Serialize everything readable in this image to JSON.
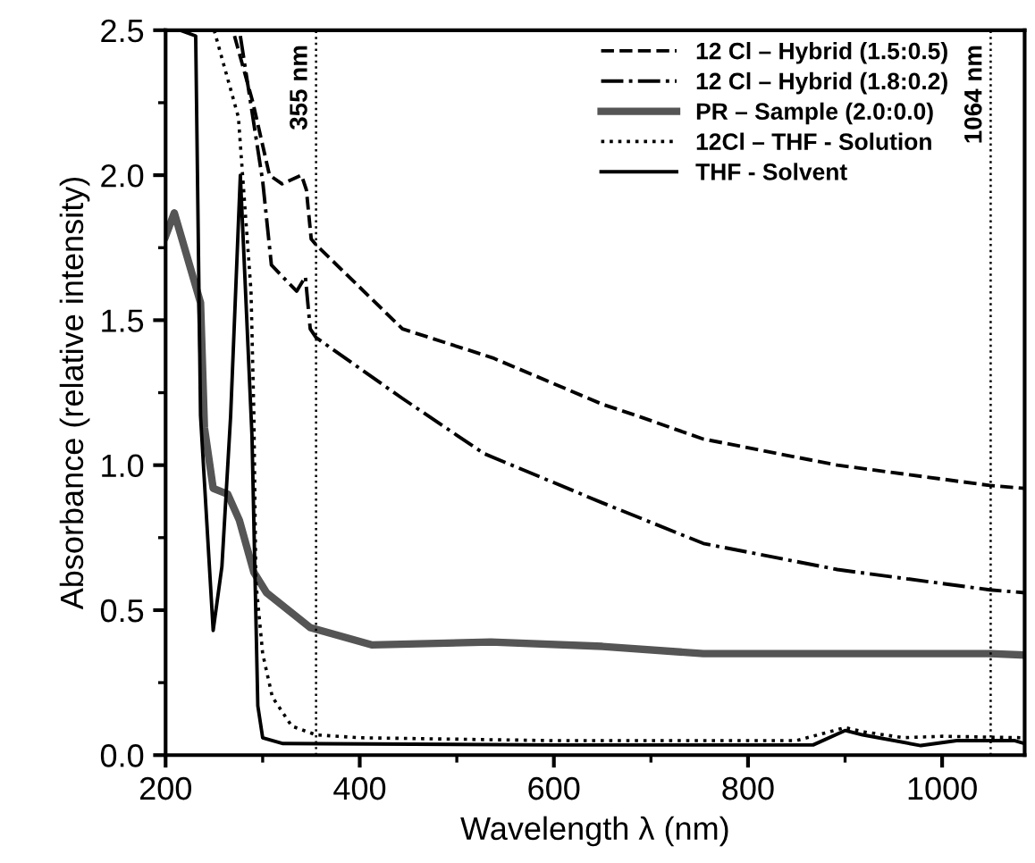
{
  "chart_data": {
    "type": "line",
    "xlabel": "Wavelength λ (nm)",
    "ylabel": "Absorbance (relative intensity)",
    "xlim": [
      200,
      1085
    ],
    "ylim": [
      0,
      2.5
    ],
    "xticks": [
      200,
      400,
      600,
      800,
      1000
    ],
    "yticks": [
      {
        "value": 0,
        "label": "0.0"
      },
      {
        "value": 0.5,
        "label": "0.5"
      },
      {
        "value": 1,
        "label": "1.0"
      },
      {
        "value": 1.5,
        "label": "1.5"
      },
      {
        "value": 2,
        "label": "2.0"
      },
      {
        "value": 2.5,
        "label": "2.5"
      }
    ],
    "legend": "top right",
    "grid": false,
    "ref_lines": [
      {
        "axis": "x",
        "value": 355,
        "label": "355 nm",
        "line_style": "dotted",
        "color": "#000000"
      },
      {
        "axis": "x",
        "value": 1050,
        "label": "1064 nm",
        "line_style": "dotted",
        "color": "#000000"
      }
    ],
    "series": [
      {
        "name": "12 Cl – Hybrid (1.5:0.5)",
        "color": "#000000",
        "line_style": "dashed",
        "x": [
          271,
          290,
          307,
          320,
          340,
          345,
          350,
          355,
          444,
          537,
          650,
          686,
          754,
          892,
          1049,
          1085
        ],
        "values": [
          2.48,
          2.25,
          2.0,
          1.97,
          2.0,
          1.95,
          1.78,
          1.76,
          1.47,
          1.37,
          1.21,
          1.17,
          1.09,
          1.0,
          0.93,
          0.92
        ]
      },
      {
        "name": "12 Cl – Hybrid (1.8:0.2)",
        "color": "#000000",
        "line_style": "dashdot",
        "x": [
          277,
          300,
          309,
          335,
          344,
          349,
          355,
          444,
          528,
          650,
          754,
          892,
          1049,
          1085
        ],
        "values": [
          2.48,
          1.98,
          1.69,
          1.6,
          1.65,
          1.47,
          1.44,
          1.23,
          1.04,
          0.87,
          0.73,
          0.64,
          0.57,
          0.56
        ]
      },
      {
        "name": "PR – Sample (2.0:0.0)",
        "color": "#555555",
        "line_style": "solid",
        "x": [
          200,
          209,
          236,
          240,
          249,
          264,
          276,
          291,
          304,
          349,
          413,
          535,
          650,
          754,
          1049,
          1085
        ],
        "values": [
          1.79,
          1.87,
          1.56,
          1.13,
          0.92,
          0.9,
          0.81,
          0.63,
          0.56,
          0.44,
          0.38,
          0.39,
          0.375,
          0.35,
          0.35,
          0.345
        ]
      },
      {
        "name": "12Cl – THF - Solution",
        "color": "#000000",
        "line_style": "dotted",
        "x": [
          250,
          275,
          288,
          291,
          293,
          300,
          310,
          330,
          355,
          400,
          600,
          850,
          900,
          920,
          960,
          1000,
          1085
        ],
        "values": [
          2.5,
          2.2,
          1.6,
          1.17,
          0.6,
          0.35,
          0.2,
          0.1,
          0.07,
          0.06,
          0.05,
          0.05,
          0.095,
          0.08,
          0.06,
          0.065,
          0.06
        ]
      },
      {
        "name": "THF - Solvent",
        "color": "#000000",
        "line_style": "solid",
        "x": [
          215,
          231,
          236,
          249,
          258,
          267,
          277,
          289,
          295,
          300,
          321,
          600,
          650,
          867,
          900,
          918,
          978,
          1015,
          1075,
          1085
        ],
        "values": [
          2.5,
          2.48,
          1.17,
          0.43,
          0.65,
          1.17,
          2.0,
          1.1,
          0.17,
          0.06,
          0.04,
          0.035,
          0.035,
          0.035,
          0.085,
          0.07,
          0.033,
          0.05,
          0.05,
          0.04
        ]
      }
    ]
  }
}
